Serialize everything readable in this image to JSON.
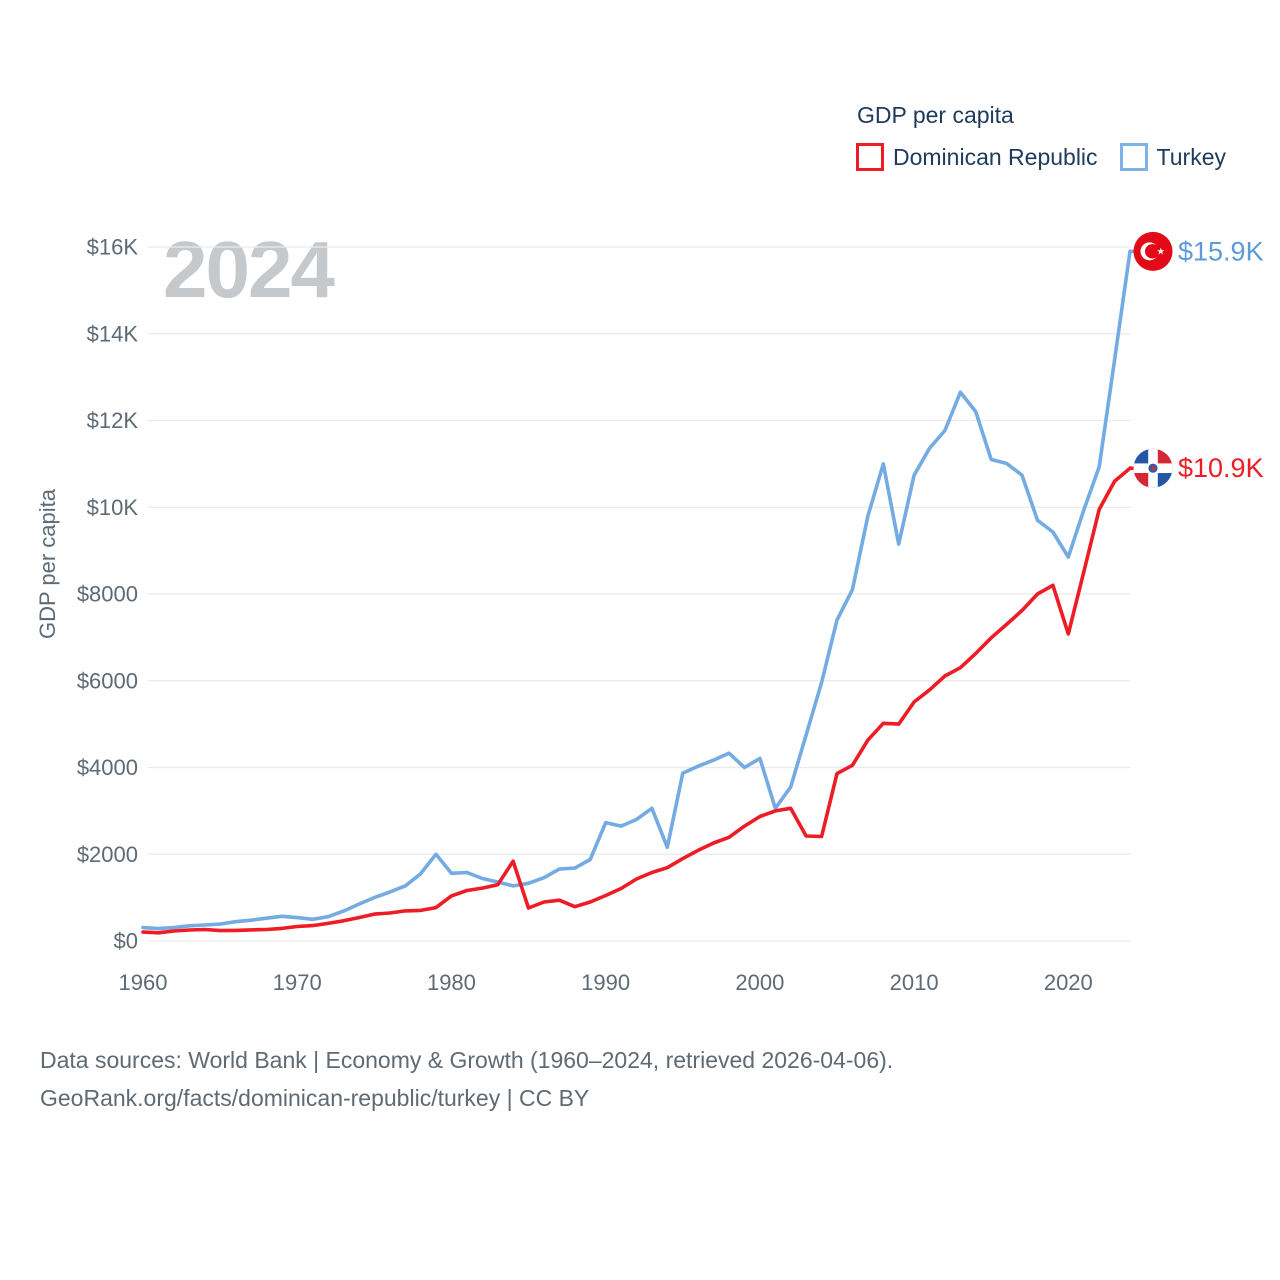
{
  "header": {
    "title": "GDP per capita",
    "legend": [
      {
        "label": "Dominican Republic",
        "color": "#ed1c25"
      },
      {
        "label": "Turkey",
        "color": "#74abe2"
      }
    ]
  },
  "watermark": "2024",
  "y_axis": {
    "label": "GDP per capita",
    "ticks": [
      {
        "value": 0,
        "label": "$0"
      },
      {
        "value": 2000,
        "label": "$2000"
      },
      {
        "value": 4000,
        "label": "$4000"
      },
      {
        "value": 6000,
        "label": "$6000"
      },
      {
        "value": 8000,
        "label": "$8000"
      },
      {
        "value": 10000,
        "label": "$10K"
      },
      {
        "value": 12000,
        "label": "$12K"
      },
      {
        "value": 14000,
        "label": "$14K"
      },
      {
        "value": 16000,
        "label": "$16K"
      }
    ]
  },
  "x_axis": {
    "ticks": [
      1960,
      1970,
      1980,
      1990,
      2000,
      2010,
      2020
    ]
  },
  "chart_data": {
    "type": "line",
    "title": "GDP per capita",
    "xlabel": "",
    "ylabel": "GDP per capita",
    "xlim": [
      1960,
      2024
    ],
    "ylim": [
      0,
      16000
    ],
    "grid": true,
    "legend_position": "top-right",
    "x_start_year": 1960,
    "x_step_years": 1,
    "series": [
      {
        "name": "Dominican Republic",
        "color": "#ed1c25",
        "end_label": "$10.9K",
        "flag_icon": "dominican-republic-flag-icon",
        "values": [
          205,
          190,
          230,
          253,
          265,
          240,
          245,
          255,
          265,
          290,
          335,
          355,
          405,
          465,
          540,
          620,
          645,
          695,
          705,
          770,
          1040,
          1165,
          1220,
          1295,
          1840,
          760,
          900,
          940,
          790,
          900,
          1050,
          1210,
          1430,
          1580,
          1690,
          1900,
          2090,
          2260,
          2390,
          2650,
          2870,
          3000,
          3060,
          2420,
          2410,
          3860,
          4050,
          4630,
          5020,
          5000,
          5510,
          5790,
          6110,
          6300,
          6630,
          6990,
          7300,
          7620,
          8000,
          8200,
          7080,
          8500,
          9950,
          10600,
          10900
        ]
      },
      {
        "name": "Turkey",
        "color": "#74abe2",
        "end_label": "$15.9K",
        "flag_icon": "turkey-flag-icon",
        "values": [
          310,
          285,
          310,
          350,
          370,
          390,
          445,
          480,
          525,
          570,
          540,
          500,
          560,
          690,
          850,
          1000,
          1130,
          1270,
          1550,
          2000,
          1560,
          1580,
          1440,
          1360,
          1270,
          1330,
          1460,
          1660,
          1680,
          1880,
          2730,
          2650,
          2800,
          3060,
          2160,
          3870,
          4030,
          4170,
          4330,
          4000,
          4210,
          3060,
          3550,
          4750,
          5960,
          7400,
          8100,
          9790,
          11000,
          9150,
          10740,
          11360,
          11770,
          12650,
          12200,
          11100,
          11010,
          10740,
          9700,
          9430,
          8850,
          9930,
          10930,
          13400,
          15900
        ]
      }
    ]
  },
  "footer": {
    "line1": "Data sources: World Bank | Economy & Growth (1960–2024, retrieved 2026-04-06).",
    "line2": "GeoRank.org/facts/dominican-republic/turkey | CC BY"
  }
}
